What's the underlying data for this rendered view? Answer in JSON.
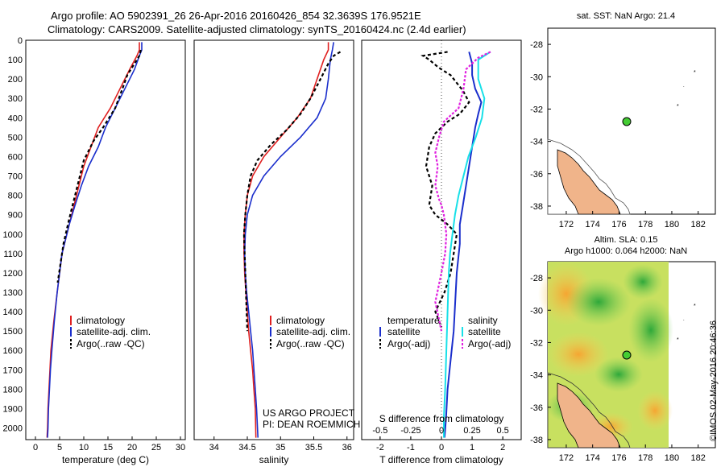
{
  "header": {
    "line1": "Argo profile: AO 5902391_26 26-Apr-2016 20160426_854 32.3639S 176.9521E",
    "line2": "Climatology: CARS2009. Satellite-adjusted climatology: synTS_20160424.nc (2.4d earlier)"
  },
  "colors": {
    "climatology": "#e02020",
    "satellite": "#1a2ecc",
    "argo": "#000000",
    "sal_sat": "#18e0e8",
    "sal_argo": "#e020e0",
    "land": "#f0b48a"
  },
  "depth_ticks": [
    "0",
    "100",
    "200",
    "300",
    "400",
    "500",
    "600",
    "700",
    "800",
    "900",
    "1000",
    "1100",
    "1200",
    "1300",
    "1400",
    "1500",
    "1600",
    "1700",
    "1800",
    "1900",
    "2000"
  ],
  "temp_panel": {
    "xlabel": "temperature (deg C)",
    "xticks": [
      "0",
      "5",
      "10",
      "15",
      "20",
      "25",
      "30"
    ],
    "legend": [
      "climatology",
      "satellite-adj. clim.",
      "Argo(..raw -QC)"
    ]
  },
  "sal_panel": {
    "xlabel": "salinity",
    "xticks": [
      "34",
      "34.5",
      "35",
      "35.5",
      "36"
    ],
    "legend": [
      "climatology",
      "satellite-adj. clim.",
      "Argo(..raw -QC)"
    ],
    "project_line1": "US ARGO PROJECT",
    "project_line2": "PI: DEAN ROEMMICH"
  },
  "diff_panel": {
    "xlabel": "T difference from climatology",
    "s_label": "S difference from climatology",
    "s_ticks": [
      "-0.5",
      "-0.25",
      "0",
      "0.25",
      "0.5"
    ],
    "t_ticks": [
      "-2",
      "-1",
      "0",
      "1",
      "2"
    ],
    "legend_temp_title": "temperature",
    "legend_sal_title": "salinity",
    "legend_temp_items": [
      "satellite",
      "Argo(-adj)"
    ],
    "legend_sal_items": [
      "satellite",
      "Argo(-adj)"
    ]
  },
  "map_top": {
    "title": "sat. SST: NaN Argo: 21.4",
    "yticks": [
      "-28",
      "-30",
      "-32",
      "-34",
      "-36",
      "-38"
    ],
    "xticks": [
      "172",
      "174",
      "176",
      "178",
      "180",
      "182"
    ]
  },
  "map_bottom": {
    "title1": "Altim. SLA: 0.15",
    "title2": "Argo h1000: 0.064 h2000: NaN",
    "yticks": [
      "-28",
      "-30",
      "-32",
      "-34",
      "-36",
      "-38"
    ],
    "xticks": [
      "172",
      "174",
      "176",
      "178",
      "180",
      "182"
    ]
  },
  "footer": {
    "credit": "©IMOS 02-May-2016 20:46:36"
  },
  "chart_data": [
    {
      "type": "line",
      "title": "temperature profile",
      "xlabel": "temperature (deg C)",
      "ylabel": "depth",
      "xlim": [
        -2,
        31
      ],
      "ylim": [
        2060,
        0
      ],
      "series": [
        {
          "name": "climatology",
          "x": [
            21.5,
            21.5,
            21.0,
            19.5,
            17.5,
            15.5,
            13.0,
            11.5,
            10.0,
            9.0,
            8.0,
            7.0,
            5.5,
            4.5,
            3.8,
            3.2,
            3.0,
            2.8,
            2.6,
            2.5,
            2.4
          ],
          "y": [
            10,
            50,
            80,
            150,
            250,
            350,
            450,
            550,
            650,
            750,
            850,
            950,
            1100,
            1300,
            1450,
            1600,
            1700,
            1800,
            1900,
            2000,
            2050
          ]
        },
        {
          "name": "satellite-adj. clim.",
          "x": [
            22.0,
            22.0,
            21.5,
            20.5,
            18.5,
            16.5,
            14.5,
            13.0,
            11.0,
            9.5,
            8.2,
            7.0,
            5.5,
            4.5,
            3.9,
            3.4,
            3.1,
            2.9,
            2.7,
            2.6,
            2.5
          ],
          "y": [
            10,
            50,
            80,
            150,
            250,
            350,
            450,
            550,
            650,
            750,
            850,
            950,
            1100,
            1300,
            1450,
            1600,
            1700,
            1800,
            1900,
            2000,
            2050
          ]
        },
        {
          "name": "Argo(..raw -QC)",
          "x": [
            21.8,
            21.5,
            20.5,
            19.0,
            18.0,
            16.5,
            14.0,
            12.0,
            10.0,
            9.0,
            8.0,
            7.0,
            5.8,
            4.6
          ],
          "y": [
            50,
            80,
            120,
            180,
            250,
            350,
            450,
            520,
            620,
            720,
            820,
            920,
            1050,
            1250
          ]
        }
      ]
    },
    {
      "type": "line",
      "title": "salinity profile",
      "xlabel": "salinity",
      "ylabel": "depth",
      "xlim": [
        33.7,
        36.1
      ],
      "ylim": [
        2060,
        0
      ],
      "series": [
        {
          "name": "climatology",
          "x": [
            35.72,
            35.72,
            35.65,
            35.55,
            35.45,
            35.25,
            35.0,
            34.75,
            34.58,
            34.5,
            34.47,
            34.45,
            34.45,
            34.46,
            34.48,
            34.5,
            34.52,
            34.55,
            34.58,
            34.6,
            34.62,
            34.63
          ],
          "y": [
            10,
            50,
            100,
            200,
            300,
            400,
            500,
            600,
            700,
            800,
            900,
            1000,
            1100,
            1200,
            1300,
            1400,
            1500,
            1600,
            1700,
            1800,
            1900,
            2050
          ]
        },
        {
          "name": "satellite-adj. clim.",
          "x": [
            35.8,
            35.78,
            35.75,
            35.72,
            35.68,
            35.55,
            35.3,
            35.0,
            34.75,
            34.58,
            34.5,
            34.47,
            34.46,
            34.47,
            34.49,
            34.52,
            34.55,
            34.58,
            34.6,
            34.62,
            34.64,
            34.66
          ],
          "y": [
            10,
            50,
            100,
            200,
            300,
            400,
            500,
            600,
            700,
            800,
            900,
            1000,
            1100,
            1200,
            1300,
            1400,
            1500,
            1600,
            1700,
            1800,
            1900,
            2050
          ]
        },
        {
          "name": "Argo(..raw -QC)",
          "x": [
            35.9,
            35.8,
            35.72,
            35.6,
            35.45,
            35.3,
            35.1,
            34.85,
            34.65,
            34.55,
            34.5,
            34.47,
            34.45,
            34.46,
            34.48,
            34.5
          ],
          "y": [
            60,
            80,
            120,
            200,
            300,
            380,
            460,
            540,
            620,
            700,
            800,
            900,
            1000,
            1100,
            1300,
            1500
          ]
        }
      ]
    },
    {
      "type": "line",
      "title": "difference from climatology",
      "xlabel": "T difference from climatology",
      "ylabel": "depth",
      "xlim": [
        -2.6,
        2.6
      ],
      "ylim": [
        2060,
        0
      ],
      "series": [
        {
          "name": "temperature satellite",
          "x": [
            0.9,
            1.0,
            1.0,
            1.1,
            1.3,
            1.2,
            1.1,
            1.0,
            0.9,
            0.8,
            0.7,
            0.6,
            0.6,
            0.5,
            0.45,
            0.4,
            0.3,
            0.2,
            0.15,
            0.1
          ],
          "y": [
            60,
            120,
            180,
            250,
            320,
            380,
            450,
            550,
            650,
            750,
            850,
            950,
            1050,
            1200,
            1350,
            1500,
            1650,
            1800,
            1950,
            2050
          ]
        },
        {
          "name": "temperature Argo(-adj)",
          "x": [
            0.2,
            -0.6,
            -0.4,
            -0.1,
            0.3,
            0.5,
            0.7,
            0.9,
            0.6,
            0.2,
            -0.2,
            -0.4,
            -0.5,
            -0.3,
            -0.4,
            -0.2,
            0.2,
            0.5,
            0.4,
            0.3,
            0.1,
            -0.2,
            0.0
          ],
          "y": [
            60,
            80,
            100,
            140,
            180,
            220,
            260,
            320,
            380,
            420,
            480,
            550,
            650,
            750,
            850,
            900,
            950,
            1000,
            1100,
            1200,
            1300,
            1400,
            1480
          ]
        },
        {
          "name": "salinity satellite",
          "x": [
            0.4,
            0.3,
            0.3,
            0.35,
            0.33,
            0.28,
            0.22,
            0.18,
            0.14,
            0.11,
            0.09,
            0.07,
            0.06,
            0.05,
            0.04,
            0.03,
            0.02,
            0.02
          ],
          "y": [
            60,
            100,
            200,
            300,
            400,
            500,
            600,
            700,
            800,
            900,
            1000,
            1100,
            1200,
            1400,
            1600,
            1800,
            1950,
            2050
          ]
        },
        {
          "name": "salinity Argo(-adj)",
          "x": [
            0.4,
            0.3,
            0.2,
            0.18,
            0.14,
            0.02,
            -0.02,
            -0.05,
            -0.03,
            -0.05,
            -0.02,
            0.0,
            0.02,
            0.04,
            0.03,
            0.0,
            -0.05,
            0.0
          ],
          "y": [
            60,
            90,
            150,
            250,
            350,
            420,
            500,
            580,
            650,
            750,
            820,
            850,
            900,
            1000,
            1100,
            1200,
            1350,
            1500
          ]
        }
      ]
    }
  ]
}
